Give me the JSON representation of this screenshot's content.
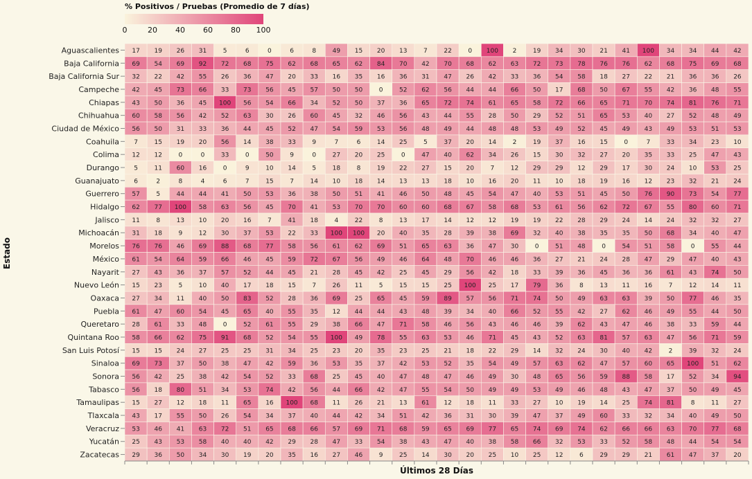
{
  "chart_data": {
    "type": "heatmap",
    "legend": {
      "title": "% Positivos / Pruebas (Promedio de 7 días)",
      "ticks": [
        "0",
        "20",
        "40",
        "60",
        "80",
        "100"
      ],
      "domain": [
        0,
        100
      ],
      "color_low": "#faf3dc",
      "color_high": "#e0457a"
    },
    "ylabel": "Estado",
    "xlabel": "Últimos 28 Días",
    "rows": [
      {
        "name": "Aguascalientes",
        "values": [
          17,
          19,
          26,
          31,
          5,
          6,
          0,
          6,
          8,
          49,
          15,
          20,
          13,
          7,
          22,
          0,
          100,
          2,
          19,
          34,
          30,
          21,
          41,
          100,
          34,
          34,
          44,
          42
        ]
      },
      {
        "name": "Baja California",
        "values": [
          69,
          54,
          69,
          92,
          72,
          68,
          75,
          62,
          68,
          65,
          62,
          84,
          70,
          42,
          70,
          68,
          62,
          63,
          72,
          73,
          78,
          76,
          76,
          62,
          68,
          75,
          69,
          68
        ]
      },
      {
        "name": "Baja California Sur",
        "values": [
          32,
          22,
          42,
          55,
          26,
          36,
          47,
          20,
          33,
          16,
          35,
          16,
          36,
          31,
          47,
          26,
          42,
          33,
          36,
          54,
          58,
          18,
          27,
          22,
          21,
          36,
          36,
          26
        ]
      },
      {
        "name": "Campeche",
        "values": [
          42,
          45,
          73,
          66,
          33,
          73,
          56,
          45,
          57,
          50,
          50,
          0,
          52,
          62,
          56,
          44,
          44,
          66,
          50,
          17,
          68,
          50,
          67,
          55,
          42,
          36,
          48,
          55
        ]
      },
      {
        "name": "Chiapas",
        "values": [
          43,
          50,
          36,
          45,
          100,
          56,
          54,
          66,
          34,
          52,
          50,
          37,
          36,
          65,
          72,
          74,
          61,
          65,
          58,
          72,
          66,
          65,
          71,
          70,
          74,
          81,
          76,
          71
        ]
      },
      {
        "name": "Chihuahua",
        "values": [
          60,
          58,
          56,
          42,
          52,
          63,
          30,
          26,
          60,
          45,
          32,
          46,
          56,
          43,
          44,
          55,
          28,
          50,
          29,
          52,
          51,
          65,
          53,
          40,
          27,
          52,
          48,
          49
        ]
      },
      {
        "name": "Ciudad de México",
        "values": [
          56,
          50,
          31,
          33,
          36,
          44,
          45,
          52,
          47,
          54,
          59,
          53,
          56,
          48,
          49,
          44,
          48,
          48,
          53,
          49,
          52,
          45,
          49,
          43,
          49,
          53,
          51,
          53
        ]
      },
      {
        "name": "Coahuila",
        "values": [
          7,
          15,
          19,
          20,
          56,
          14,
          38,
          33,
          9,
          7,
          6,
          14,
          25,
          5,
          37,
          20,
          14,
          2,
          19,
          37,
          16,
          15,
          0,
          7,
          33,
          34,
          23,
          10
        ]
      },
      {
        "name": "Colima",
        "values": [
          12,
          12,
          0,
          0,
          33,
          0,
          50,
          9,
          0,
          27,
          20,
          25,
          0,
          47,
          40,
          62,
          34,
          26,
          15,
          30,
          32,
          27,
          20,
          35,
          33,
          25,
          47,
          43
        ]
      },
      {
        "name": "Durango",
        "values": [
          5,
          11,
          60,
          16,
          0,
          9,
          10,
          14,
          5,
          18,
          8,
          19,
          22,
          27,
          15,
          20,
          7,
          12,
          29,
          29,
          12,
          29,
          17,
          30,
          24,
          10,
          53,
          25
        ]
      },
      {
        "name": "Guanajuato",
        "values": [
          6,
          2,
          8,
          4,
          6,
          7,
          15,
          7,
          14,
          10,
          18,
          14,
          13,
          13,
          18,
          10,
          16,
          20,
          11,
          10,
          18,
          19,
          16,
          12,
          23,
          32,
          21,
          24
        ]
      },
      {
        "name": "Guerrero",
        "values": [
          57,
          5,
          44,
          44,
          41,
          50,
          53,
          36,
          38,
          50,
          51,
          41,
          46,
          50,
          48,
          45,
          54,
          47,
          40,
          53,
          51,
          45,
          50,
          76,
          90,
          73,
          54,
          77
        ]
      },
      {
        "name": "Hidalgo",
        "values": [
          62,
          77,
          100,
          58,
          63,
          56,
          45,
          70,
          41,
          53,
          70,
          70,
          60,
          60,
          68,
          67,
          58,
          68,
          53,
          61,
          56,
          62,
          72,
          67,
          55,
          80,
          60,
          71
        ]
      },
      {
        "name": "Jalisco",
        "values": [
          11,
          8,
          13,
          10,
          20,
          16,
          7,
          41,
          18,
          4,
          22,
          8,
          13,
          17,
          14,
          12,
          12,
          19,
          19,
          22,
          28,
          29,
          24,
          14,
          24,
          32,
          32,
          27
        ]
      },
      {
        "name": "Michoacán",
        "values": [
          31,
          18,
          9,
          12,
          30,
          37,
          53,
          22,
          33,
          100,
          100,
          20,
          40,
          35,
          28,
          39,
          38,
          69,
          32,
          40,
          38,
          35,
          35,
          50,
          68,
          34,
          40,
          47
        ]
      },
      {
        "name": "Morelos",
        "values": [
          76,
          76,
          46,
          69,
          88,
          68,
          77,
          58,
          56,
          61,
          62,
          69,
          51,
          65,
          63,
          36,
          47,
          30,
          0,
          51,
          48,
          0,
          54,
          51,
          58,
          0,
          55,
          44
        ]
      },
      {
        "name": "México",
        "values": [
          61,
          54,
          64,
          59,
          66,
          46,
          45,
          59,
          72,
          67,
          56,
          49,
          46,
          64,
          48,
          70,
          46,
          46,
          36,
          27,
          21,
          24,
          28,
          47,
          29,
          47,
          40,
          43
        ]
      },
      {
        "name": "Nayarit",
        "values": [
          27,
          43,
          36,
          37,
          57,
          52,
          44,
          45,
          21,
          28,
          45,
          42,
          25,
          45,
          29,
          56,
          42,
          18,
          33,
          39,
          36,
          45,
          36,
          36,
          61,
          43,
          74,
          50
        ]
      },
      {
        "name": "Nuevo León",
        "values": [
          15,
          23,
          5,
          10,
          40,
          17,
          18,
          15,
          7,
          26,
          11,
          5,
          15,
          15,
          25,
          100,
          25,
          17,
          79,
          36,
          8,
          13,
          11,
          16,
          7,
          12,
          14,
          11
        ]
      },
      {
        "name": "Oaxaca",
        "values": [
          27,
          34,
          11,
          40,
          50,
          83,
          52,
          28,
          36,
          69,
          25,
          65,
          45,
          59,
          89,
          57,
          56,
          71,
          74,
          50,
          49,
          63,
          63,
          39,
          50,
          77,
          46,
          35
        ]
      },
      {
        "name": "Puebla",
        "values": [
          61,
          47,
          60,
          54,
          45,
          65,
          40,
          55,
          35,
          12,
          44,
          44,
          43,
          48,
          39,
          34,
          40,
          66,
          52,
          55,
          42,
          27,
          62,
          46,
          49,
          55,
          44,
          50
        ]
      },
      {
        "name": "Queretaro",
        "values": [
          28,
          61,
          33,
          48,
          0,
          52,
          61,
          55,
          29,
          38,
          66,
          47,
          71,
          58,
          46,
          56,
          43,
          46,
          46,
          39,
          62,
          43,
          47,
          46,
          38,
          33,
          59,
          44
        ]
      },
      {
        "name": "Quintana Roo",
        "values": [
          58,
          66,
          62,
          75,
          91,
          68,
          52,
          54,
          55,
          100,
          49,
          78,
          55,
          63,
          53,
          46,
          71,
          45,
          43,
          52,
          63,
          81,
          57,
          63,
          47,
          56,
          71,
          59
        ]
      },
      {
        "name": "San Luis Potosí",
        "values": [
          15,
          15,
          24,
          27,
          25,
          25,
          31,
          34,
          25,
          23,
          20,
          35,
          23,
          25,
          21,
          18,
          22,
          29,
          14,
          32,
          24,
          30,
          40,
          42,
          2,
          39,
          32,
          24
        ]
      },
      {
        "name": "Sinaloa",
        "values": [
          69,
          73,
          37,
          50,
          38,
          47,
          42,
          59,
          36,
          53,
          35,
          37,
          42,
          53,
          52,
          35,
          54,
          49,
          57,
          63,
          62,
          47,
          57,
          60,
          65,
          100,
          51,
          62
        ]
      },
      {
        "name": "Sonora",
        "values": [
          56,
          42,
          25,
          38,
          42,
          54,
          52,
          33,
          68,
          25,
          45,
          40,
          47,
          48,
          47,
          46,
          49,
          30,
          48,
          65,
          56,
          59,
          88,
          58,
          17,
          52,
          34,
          94
        ]
      },
      {
        "name": "Tabasco",
        "values": [
          56,
          18,
          80,
          51,
          34,
          53,
          74,
          42,
          56,
          44,
          66,
          42,
          47,
          55,
          54,
          50,
          49,
          49,
          53,
          49,
          46,
          48,
          43,
          47,
          37,
          50,
          49,
          45
        ]
      },
      {
        "name": "Tamaulipas",
        "values": [
          15,
          27,
          12,
          18,
          11,
          65,
          16,
          100,
          68,
          11,
          26,
          21,
          13,
          61,
          12,
          18,
          11,
          33,
          27,
          10,
          19,
          14,
          25,
          74,
          81,
          8,
          11,
          27
        ]
      },
      {
        "name": "Tlaxcala",
        "values": [
          43,
          17,
          55,
          50,
          26,
          54,
          34,
          37,
          40,
          44,
          42,
          34,
          51,
          42,
          36,
          31,
          30,
          39,
          47,
          37,
          49,
          60,
          33,
          32,
          34,
          40,
          49,
          50
        ]
      },
      {
        "name": "Veracruz",
        "values": [
          53,
          46,
          41,
          63,
          72,
          51,
          65,
          68,
          66,
          57,
          69,
          71,
          68,
          59,
          65,
          69,
          77,
          65,
          74,
          69,
          74,
          62,
          66,
          66,
          63,
          70,
          77,
          68
        ]
      },
      {
        "name": "Yucatán",
        "values": [
          25,
          43,
          53,
          58,
          40,
          40,
          42,
          29,
          28,
          47,
          33,
          54,
          38,
          43,
          47,
          40,
          38,
          58,
          66,
          32,
          53,
          33,
          52,
          58,
          48,
          44,
          54,
          54
        ]
      },
      {
        "name": "Zacatecas",
        "values": [
          29,
          36,
          50,
          34,
          30,
          19,
          20,
          35,
          16,
          27,
          46,
          9,
          25,
          14,
          30,
          20,
          25,
          10,
          25,
          12,
          6,
          29,
          29,
          21,
          61,
          47,
          37,
          20
        ]
      }
    ]
  }
}
